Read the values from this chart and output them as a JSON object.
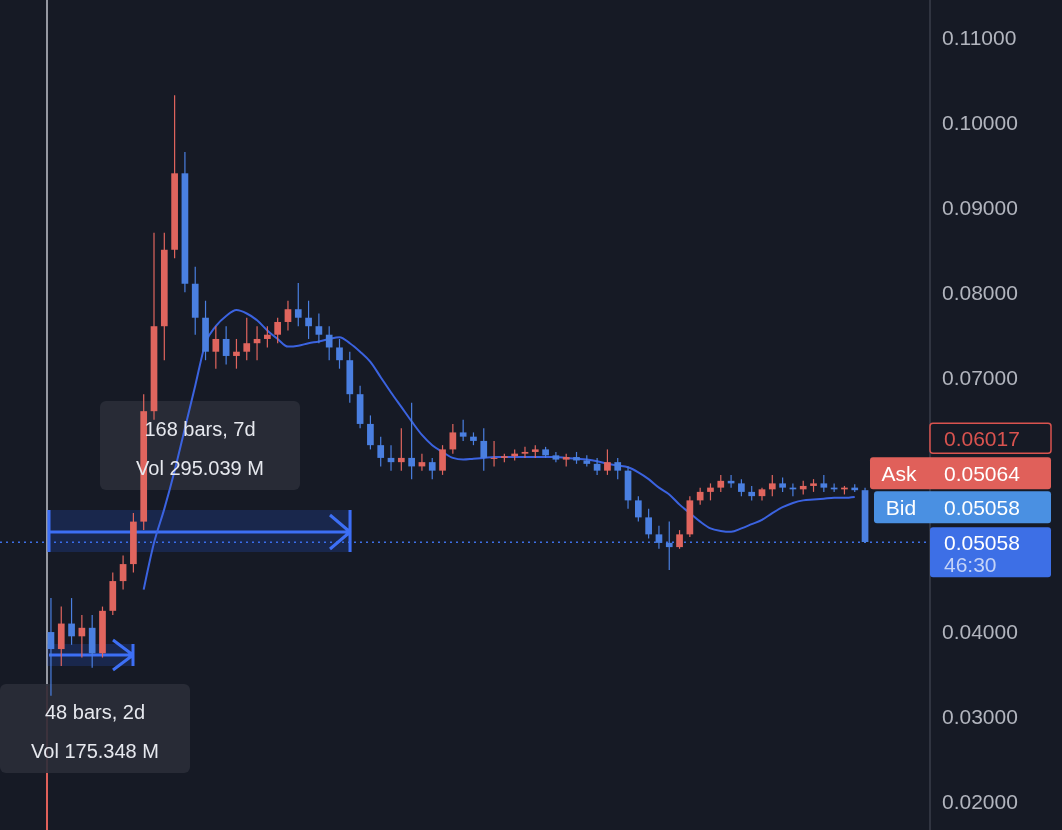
{
  "chart_data": {
    "type": "candlestick",
    "categories": [
      null,
      null,
      null,
      null,
      null,
      null,
      null,
      null,
      null,
      null,
      null,
      null,
      null,
      null,
      null,
      null,
      null,
      null,
      null,
      null,
      null,
      null,
      null,
      null,
      null,
      null,
      null,
      null,
      null,
      null,
      null,
      null,
      null,
      null,
      null,
      null,
      null,
      null,
      null,
      null,
      null,
      null,
      null,
      null,
      null,
      null,
      null,
      null,
      null,
      null,
      null,
      null,
      null,
      null,
      null,
      null,
      null,
      null,
      null,
      null,
      null,
      null,
      null,
      null,
      null,
      null,
      null,
      null,
      null,
      null,
      null,
      null,
      null,
      null,
      null,
      null,
      null,
      null,
      null,
      null
    ],
    "colors": [
      "#4a7fe0",
      "#e0655e",
      "#4a7fe0",
      "#e0655e",
      "#4a7fe0",
      "#e0655e",
      "#e0655e",
      "#e0655e",
      "#e0655e",
      "#e0655e",
      "#e0655e",
      "#e0655e",
      "#e0655e",
      "#4a7fe0",
      "#4a7fe0",
      "#4a7fe0",
      "#e0655e",
      "#4a7fe0",
      "#e0655e",
      "#e0655e",
      "#e0655e",
      "#e0655e",
      "#e0655e",
      "#e0655e",
      "#4a7fe0",
      "#4a7fe0",
      "#4a7fe0",
      "#4a7fe0",
      "#4a7fe0",
      "#4a7fe0",
      "#4a7fe0",
      "#4a7fe0",
      "#4a7fe0",
      "#4a7fe0",
      "#e0655e",
      "#4a7fe0",
      "#e0655e",
      "#4a7fe0",
      "#e0655e",
      "#e0655e",
      "#4a7fe0",
      "#4a7fe0",
      "#4a7fe0",
      "#e0655e",
      "#e0655e",
      "#e0655e",
      "#e0655e",
      "#e0655e",
      "#4a7fe0",
      "#4a7fe0",
      "#e0655e",
      "#4a7fe0",
      "#4a7fe0",
      "#4a7fe0",
      "#e0655e",
      "#4a7fe0",
      "#4a7fe0",
      "#4a7fe0",
      "#4a7fe0",
      "#4a7fe0",
      "#4a7fe0",
      "#e0655e",
      "#e0655e",
      "#e0655e",
      "#e0655e",
      "#e0655e",
      "#4a7fe0",
      "#4a7fe0",
      "#4a7fe0",
      "#e0655e",
      "#e0655e",
      "#4a7fe0",
      "#4a7fe0",
      "#e0655e",
      "#e0655e",
      "#4a7fe0",
      "#4a7fe0",
      "#e0655e",
      "#4a7fe0",
      "#4a7fe0"
    ],
    "ohlc": [
      [
        0.04,
        0.044,
        0.0325,
        0.038
      ],
      [
        0.038,
        0.043,
        0.036,
        0.041
      ],
      [
        0.041,
        0.044,
        0.0385,
        0.0395
      ],
      [
        0.0395,
        0.042,
        0.037,
        0.0405
      ],
      [
        0.0405,
        0.042,
        0.0358,
        0.0375
      ],
      [
        0.0375,
        0.043,
        0.037,
        0.0425
      ],
      [
        0.0425,
        0.047,
        0.042,
        0.046
      ],
      [
        0.046,
        0.049,
        0.045,
        0.048
      ],
      [
        0.048,
        0.054,
        0.047,
        0.053
      ],
      [
        0.053,
        0.068,
        0.052,
        0.066
      ],
      [
        0.066,
        0.087,
        0.065,
        0.076
      ],
      [
        0.076,
        0.087,
        0.072,
        0.085
      ],
      [
        0.085,
        0.1032,
        0.084,
        0.094
      ],
      [
        0.094,
        0.0965,
        0.08,
        0.081
      ],
      [
        0.081,
        0.083,
        0.075,
        0.077
      ],
      [
        0.077,
        0.079,
        0.072,
        0.073
      ],
      [
        0.073,
        0.076,
        0.071,
        0.0745
      ],
      [
        0.0745,
        0.076,
        0.0715,
        0.0725
      ],
      [
        0.0725,
        0.0745,
        0.071,
        0.073
      ],
      [
        0.073,
        0.077,
        0.072,
        0.074
      ],
      [
        0.074,
        0.076,
        0.072,
        0.0745
      ],
      [
        0.0745,
        0.076,
        0.0735,
        0.075
      ],
      [
        0.075,
        0.077,
        0.074,
        0.0765
      ],
      [
        0.0765,
        0.079,
        0.0755,
        0.078
      ],
      [
        0.078,
        0.0811,
        0.076,
        0.077
      ],
      [
        0.077,
        0.079,
        0.0745,
        0.076
      ],
      [
        0.076,
        0.0775,
        0.074,
        0.075
      ],
      [
        0.075,
        0.076,
        0.072,
        0.0735
      ],
      [
        0.0735,
        0.0745,
        0.071,
        0.072
      ],
      [
        0.072,
        0.073,
        0.067,
        0.068
      ],
      [
        0.068,
        0.069,
        0.064,
        0.0645
      ],
      [
        0.0645,
        0.0655,
        0.0615,
        0.062
      ],
      [
        0.062,
        0.063,
        0.0595,
        0.0605
      ],
      [
        0.0605,
        0.062,
        0.059,
        0.06
      ],
      [
        0.06,
        0.064,
        0.059,
        0.0605
      ],
      [
        0.0605,
        0.067,
        0.058,
        0.0595
      ],
      [
        0.0595,
        0.061,
        0.059,
        0.06
      ],
      [
        0.06,
        0.0605,
        0.058,
        0.059
      ],
      [
        0.059,
        0.062,
        0.0585,
        0.0615
      ],
      [
        0.0615,
        0.0645,
        0.061,
        0.0635
      ],
      [
        0.0635,
        0.065,
        0.0625,
        0.063
      ],
      [
        0.063,
        0.0635,
        0.062,
        0.0625
      ],
      [
        0.0625,
        0.064,
        0.059,
        0.0605
      ],
      [
        0.0605,
        0.0625,
        0.0595,
        0.0605
      ],
      [
        0.0605,
        0.061,
        0.06,
        0.0607
      ],
      [
        0.0607,
        0.0615,
        0.0602,
        0.061
      ],
      [
        0.061,
        0.0618,
        0.0605,
        0.0612
      ],
      [
        0.0612,
        0.062,
        0.0605,
        0.0615
      ],
      [
        0.0615,
        0.0618,
        0.0605,
        0.0608
      ],
      [
        0.0608,
        0.0612,
        0.06,
        0.0603
      ],
      [
        0.0603,
        0.061,
        0.0595,
        0.0606
      ],
      [
        0.0606,
        0.0612,
        0.0598,
        0.0602
      ],
      [
        0.0602,
        0.0608,
        0.0595,
        0.0598
      ],
      [
        0.0598,
        0.0605,
        0.0585,
        0.059
      ],
      [
        0.059,
        0.0615,
        0.0585,
        0.06
      ],
      [
        0.06,
        0.0605,
        0.058,
        0.059
      ],
      [
        0.059,
        0.0595,
        0.0545,
        0.0555
      ],
      [
        0.0555,
        0.056,
        0.053,
        0.0535
      ],
      [
        0.0535,
        0.0545,
        0.051,
        0.0515
      ],
      [
        0.0515,
        0.0525,
        0.0498,
        0.0505
      ],
      [
        0.0505,
        0.053,
        0.0473,
        0.05
      ],
      [
        0.05,
        0.052,
        0.0498,
        0.0515
      ],
      [
        0.0515,
        0.056,
        0.0512,
        0.0555
      ],
      [
        0.0555,
        0.057,
        0.055,
        0.0565
      ],
      [
        0.0565,
        0.0575,
        0.0555,
        0.057
      ],
      [
        0.057,
        0.0585,
        0.0565,
        0.0578
      ],
      [
        0.0578,
        0.0585,
        0.057,
        0.0575
      ],
      [
        0.0575,
        0.058,
        0.056,
        0.0565
      ],
      [
        0.0565,
        0.0572,
        0.0555,
        0.056
      ],
      [
        0.056,
        0.057,
        0.0555,
        0.0568
      ],
      [
        0.0568,
        0.0585,
        0.056,
        0.0575
      ],
      [
        0.0575,
        0.0582,
        0.0565,
        0.057
      ],
      [
        0.057,
        0.0575,
        0.056,
        0.0568
      ],
      [
        0.0568,
        0.0578,
        0.0562,
        0.0572
      ],
      [
        0.0572,
        0.058,
        0.0565,
        0.0575
      ],
      [
        0.0575,
        0.0585,
        0.0565,
        0.057
      ],
      [
        0.057,
        0.0575,
        0.0565,
        0.0568
      ],
      [
        0.0568,
        0.0572,
        0.0562,
        0.057
      ],
      [
        0.057,
        0.0574,
        0.0565,
        0.0567
      ],
      [
        0.0567,
        0.057,
        0.0505,
        0.0506
      ]
    ],
    "series": [
      {
        "type": "line",
        "color": "#3b63e0",
        "values": [
          null,
          null,
          null,
          null,
          null,
          null,
          null,
          null,
          null,
          0.045,
          0.0505,
          0.0545,
          0.059,
          0.064,
          0.069,
          0.074,
          0.076,
          0.0772,
          0.0779,
          0.0775,
          0.0767,
          0.0755,
          0.0745,
          0.0736,
          0.0737,
          0.074,
          0.0742,
          0.0745,
          0.0747,
          0.074,
          0.073,
          0.0718,
          0.07,
          0.0682,
          0.0665,
          0.0648,
          0.0632,
          0.062,
          0.0612,
          0.0605,
          0.0603,
          0.0604,
          0.0605,
          0.0606,
          0.0606,
          0.0606,
          0.0606,
          0.0606,
          0.0606,
          0.0606,
          0.0605,
          0.0604,
          0.0603,
          0.0601,
          0.0598,
          0.0596,
          0.0594,
          0.0588,
          0.058,
          0.057,
          0.0562,
          0.055,
          0.054,
          0.053,
          0.0522,
          0.0519,
          0.0518,
          0.0522,
          0.0527,
          0.0532,
          0.054,
          0.0547,
          0.0552,
          0.0555,
          0.0556,
          0.0557,
          0.0558,
          0.0558,
          0.0559,
          null
        ]
      }
    ],
    "ylim": [
      0.0167,
      0.1144
    ],
    "yticks": [
      {
        "value": 0.02,
        "label": "0.02000"
      },
      {
        "value": 0.03,
        "label": "0.03000"
      },
      {
        "value": 0.04,
        "label": "0.04000"
      },
      {
        "value": 0.07,
        "label": "0.07000"
      },
      {
        "value": 0.08,
        "label": "0.08000"
      },
      {
        "value": 0.09,
        "label": "0.09000"
      },
      {
        "value": 0.1,
        "label": "0.10000"
      },
      {
        "value": 0.11,
        "label": "0.11000"
      }
    ],
    "tick_labels": "y",
    "grid": false,
    "ref_lines": [
      {
        "axis": "y",
        "value": 0.05058,
        "color": "#3d6fe6",
        "line_style": "dotted"
      }
    ],
    "annotations": [
      "168 bars, 7d",
      "Vol 295.039 M",
      "48 bars, 2d",
      "Vol 175.348 M",
      "0.06017",
      "Ask",
      "0.05064",
      "Bid",
      "0.05058",
      "0.05058",
      "46:30"
    ]
  }
}
